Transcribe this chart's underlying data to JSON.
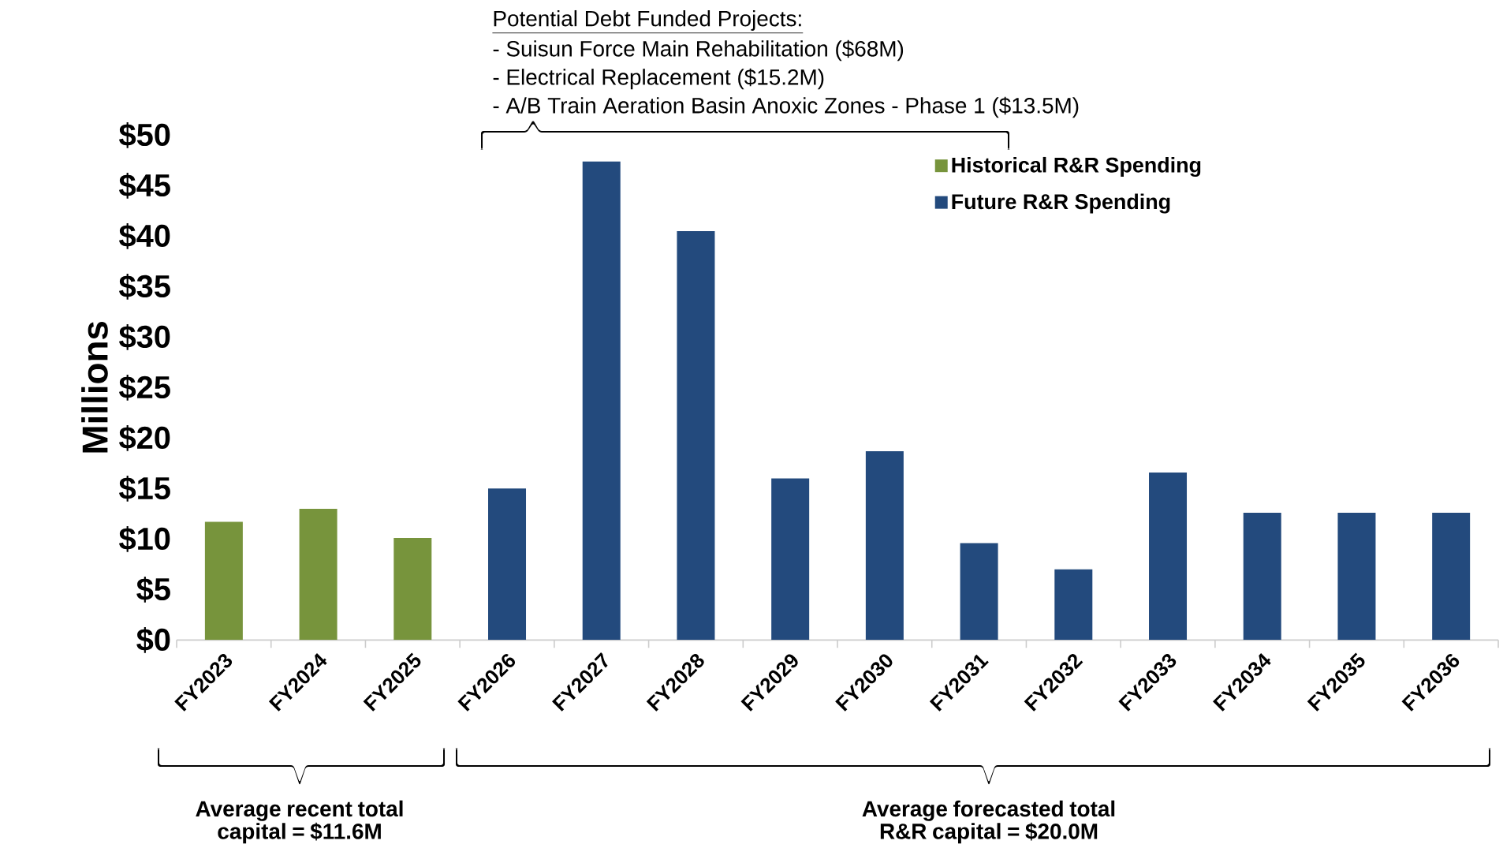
{
  "chart_data": {
    "type": "bar",
    "ylabel": "Millions",
    "categories": [
      "FY2023",
      "FY2024",
      "FY2025",
      "FY2026",
      "FY2027",
      "FY2028",
      "FY2029",
      "FY2030",
      "FY2031",
      "FY2032",
      "FY2033",
      "FY2034",
      "FY2035",
      "FY2036"
    ],
    "series": [
      {
        "name": "Historical R&R Spending",
        "color": "#77943c",
        "values": [
          11.7,
          13.0,
          10.1,
          null,
          null,
          null,
          null,
          null,
          null,
          null,
          null,
          null,
          null,
          null
        ]
      },
      {
        "name": "Future R&R Spending",
        "color": "#234a7d",
        "values": [
          null,
          null,
          null,
          15.0,
          47.4,
          40.5,
          16.0,
          18.7,
          9.6,
          7.0,
          16.6,
          12.6,
          12.6,
          12.6
        ]
      }
    ],
    "ylim": [
      0,
      50
    ],
    "yticks": [
      {
        "value": 0,
        "label": "$0"
      },
      {
        "value": 5,
        "label": "$5"
      },
      {
        "value": 10,
        "label": "$10"
      },
      {
        "value": 15,
        "label": "$15"
      },
      {
        "value": 20,
        "label": "$20"
      },
      {
        "value": 25,
        "label": "$25"
      },
      {
        "value": 30,
        "label": "$30"
      },
      {
        "value": 35,
        "label": "$35"
      },
      {
        "value": 40,
        "label": "$40"
      },
      {
        "value": 45,
        "label": "$45"
      },
      {
        "value": 50,
        "label": "$50"
      }
    ],
    "legend": "top right",
    "annotations": [
      "Potential Debt Funded Projects:",
      "-\tSuisun Force Main Rehabilitation ($68M)",
      "-\tElectrical Replacement ($15.2M)",
      "-\tA/B Train Aeration Basin Anoxic Zones - Phase 1 ($13.5M)",
      "Average recent total capital = $11.6M",
      "Average forecasted total R&R capital = $20.0M"
    ]
  }
}
